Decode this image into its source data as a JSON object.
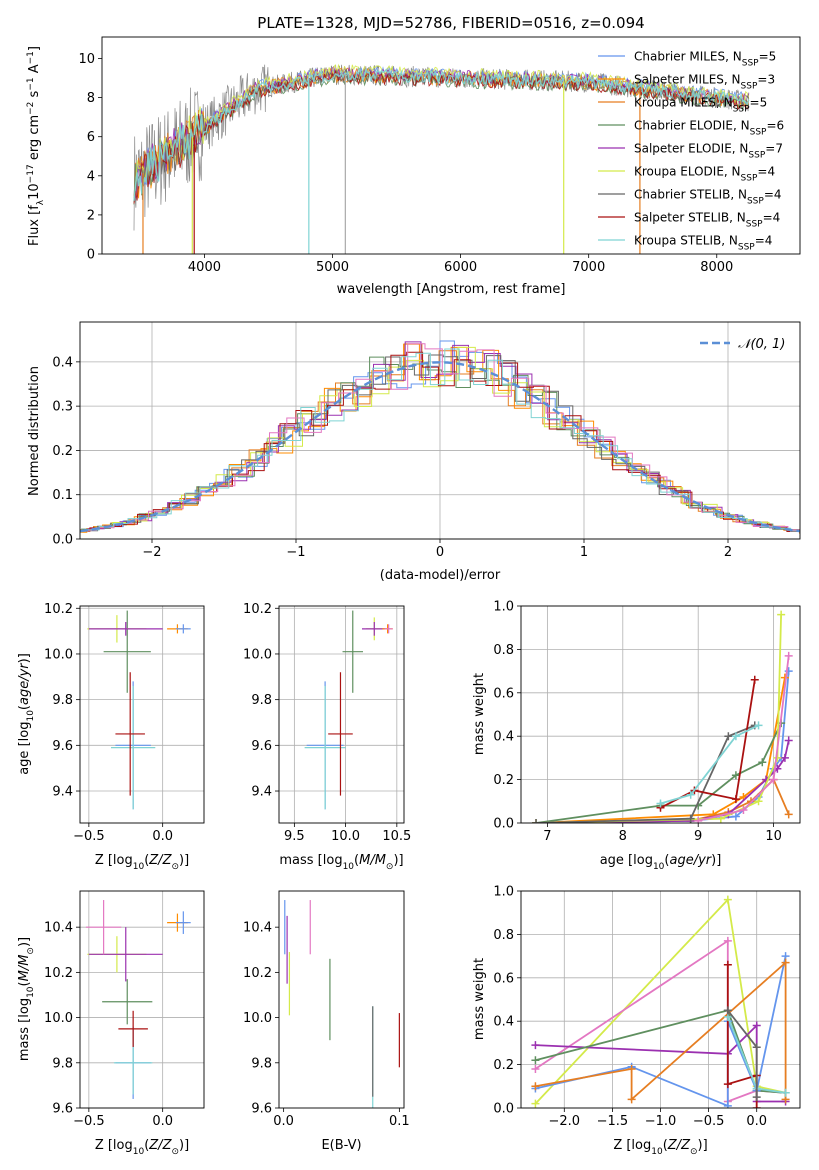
{
  "chart_data": [
    {
      "type": "line",
      "title": "PLATE=1328, MJD=52786, FIBERID=0516, z=0.094",
      "xlabel": "wavelength [Angstrom, rest frame]",
      "ylabel": "Flux [f_λ10^-17 erg cm^-2 s^-1 A^-1]",
      "xlim": [
        3200,
        8650
      ],
      "ylim": [
        0,
        11.1
      ],
      "xticks": [
        "4000",
        "5000",
        "6000",
        "7000",
        "8000"
      ],
      "yticks": [
        "0",
        "2",
        "4",
        "6",
        "8",
        "10"
      ],
      "legend_position": "right",
      "series": [
        {
          "name": "Chabrier MILES, N_SSP=5",
          "color": "#6495ed"
        },
        {
          "name": "Salpeter MILES, N_SSP=3",
          "color": "#ff8c00"
        },
        {
          "name": "Kroupa MILES, N_SSP=5",
          "color": "#e67e22"
        },
        {
          "name": "Chabrier ELODIE, N_SSP=6",
          "color": "#5f8f5f"
        },
        {
          "name": "Salpeter ELODIE, N_SSP=7",
          "color": "#9b30b0"
        },
        {
          "name": "Kroupa ELODIE, N_SSP=4",
          "color": "#d4ea4a"
        },
        {
          "name": "Chabrier STELIB, N_SSP=4",
          "color": "#666666"
        },
        {
          "name": "Salpeter STELIB, N_SSP=4",
          "color": "#aa1111"
        },
        {
          "name": "Kroupa STELIB, N_SSP=4",
          "color": "#7fd3d3"
        }
      ],
      "data_color": "#888888"
    },
    {
      "type": "bar",
      "xlabel": "(data-model)/error",
      "ylabel": "Normed distribution",
      "xlim": [
        -2.5,
        2.5
      ],
      "ylim": [
        0,
        0.49
      ],
      "xticks": [
        "−2",
        "−1",
        "0",
        "1",
        "2"
      ],
      "yticks": [
        "0.0",
        "0.1",
        "0.2",
        "0.3",
        "0.4"
      ],
      "grid": true,
      "legend": "𝒩(0, 1)",
      "legend_position": "top-right",
      "gaussian": {
        "mean": 0,
        "sigma": 1,
        "color": "#5b8fd6"
      }
    },
    {
      "type": "scatter",
      "xlabel": "Z [log10(Z/Z⊙)]",
      "ylabel": "age  [log10(age/yr)]",
      "xlim": [
        -0.56,
        0.28
      ],
      "ylim": [
        9.26,
        10.21
      ],
      "xticks": [
        "−0.5",
        "0.0"
      ],
      "yticks": [
        "9.4",
        "9.6",
        "9.8",
        "10.0",
        "10.2"
      ],
      "grid": true,
      "points": [
        {
          "x": -0.2,
          "y": 9.6,
          "xerr": 0.12,
          "yerr": 0.28,
          "color": "#6495ed"
        },
        {
          "x": -0.2,
          "y": 9.59,
          "xerr": 0.15,
          "yerr": 0.27,
          "color": "#7fd3d3"
        },
        {
          "x": -0.22,
          "y": 9.65,
          "xerr": 0.1,
          "yerr": 0.27,
          "color": "#aa1111"
        },
        {
          "x": -0.24,
          "y": 10.01,
          "xerr": 0.16,
          "yerr": 0.18,
          "color": "#5f8f5f"
        },
        {
          "x": -0.31,
          "y": 10.11,
          "xerr": 0.2,
          "yerr": 0.06,
          "color": "#d4ea4a"
        },
        {
          "x": -0.25,
          "y": 10.11,
          "xerr": 0.25,
          "yerr": 0.03,
          "color": "#9b30b0"
        },
        {
          "x": 0.1,
          "y": 10.11,
          "xerr": 0.07,
          "yerr": 0.02,
          "color": "#ff8c00"
        },
        {
          "x": 0.14,
          "y": 10.11,
          "xerr": 0.05,
          "yerr": 0.02,
          "color": "#6495ed"
        }
      ]
    },
    {
      "type": "scatter",
      "xlabel": "mass [log10(M/M⊙)]",
      "xlim": [
        9.35,
        10.57
      ],
      "ylim": [
        9.26,
        10.21
      ],
      "xticks": [
        "9.0",
        "9.5",
        "10.0",
        "10.5"
      ],
      "yticks": [
        "9.4",
        "9.6",
        "9.8",
        "10.0",
        "10.2"
      ],
      "grid": true,
      "points": [
        {
          "x": 9.8,
          "y": 9.6,
          "xerr": 0.18,
          "yerr": 0.28,
          "color": "#6495ed"
        },
        {
          "x": 9.8,
          "y": 9.59,
          "xerr": 0.2,
          "yerr": 0.27,
          "color": "#7fd3d3"
        },
        {
          "x": 9.95,
          "y": 9.65,
          "xerr": 0.12,
          "yerr": 0.27,
          "color": "#aa1111"
        },
        {
          "x": 10.07,
          "y": 10.01,
          "xerr": 0.1,
          "yerr": 0.18,
          "color": "#5f8f5f"
        },
        {
          "x": 10.28,
          "y": 10.11,
          "xerr": 0.08,
          "yerr": 0.05,
          "color": "#d4ea4a"
        },
        {
          "x": 10.28,
          "y": 10.11,
          "xerr": 0.12,
          "yerr": 0.03,
          "color": "#9b30b0"
        },
        {
          "x": 10.41,
          "y": 10.11,
          "xerr": 0.05,
          "yerr": 0.02,
          "color": "#ff8c00"
        },
        {
          "x": 10.42,
          "y": 10.11,
          "xerr": 0.04,
          "yerr": 0.02,
          "color": "#e377c2"
        }
      ]
    },
    {
      "type": "line",
      "xlabel": "age  [log10(age/yr)]",
      "ylabel": "mass weight",
      "xlim": [
        6.65,
        10.35
      ],
      "ylim": [
        0,
        1.0
      ],
      "xticks": [
        "7",
        "8",
        "9",
        "10"
      ],
      "yticks": [
        "0.0",
        "0.2",
        "0.4",
        "0.6",
        "0.8",
        "1.0"
      ],
      "grid": true,
      "series": [
        {
          "color": "#6495ed",
          "x": [
            6.85,
            8.9,
            9.5,
            9.8,
            10.0,
            10.1,
            10.2
          ],
          "y": [
            0.0,
            0.01,
            0.03,
            0.12,
            0.25,
            0.3,
            0.7
          ]
        },
        {
          "color": "#ff8c00",
          "x": [
            6.85,
            9.2,
            9.6,
            9.9,
            10.15
          ],
          "y": [
            0.0,
            0.04,
            0.12,
            0.2,
            0.67
          ]
        },
        {
          "color": "#e67e22",
          "x": [
            8.9,
            9.4,
            9.7,
            10.0,
            10.2
          ],
          "y": [
            0.01,
            0.05,
            0.1,
            0.2,
            0.04
          ]
        },
        {
          "color": "#5f8f5f",
          "x": [
            6.85,
            8.5,
            9.0,
            9.5,
            9.85,
            10.1
          ],
          "y": [
            0.0,
            0.08,
            0.08,
            0.22,
            0.28,
            0.46
          ]
        },
        {
          "color": "#9b30b0",
          "x": [
            6.85,
            8.9,
            9.4,
            9.9,
            10.05,
            10.15,
            10.2
          ],
          "y": [
            0.0,
            0.01,
            0.04,
            0.2,
            0.25,
            0.3,
            0.38
          ]
        },
        {
          "color": "#d4ea4a",
          "x": [
            6.85,
            9.3,
            9.8,
            10.05,
            10.1
          ],
          "y": [
            0.0,
            0.02,
            0.1,
            0.3,
            0.96
          ]
        },
        {
          "color": "#666666",
          "x": [
            6.85,
            8.9,
            9.4,
            9.75
          ],
          "y": [
            0.0,
            0.02,
            0.4,
            0.45
          ]
        },
        {
          "color": "#aa1111",
          "x": [
            8.5,
            8.95,
            9.5,
            9.75
          ],
          "y": [
            0.07,
            0.15,
            0.11,
            0.66
          ]
        },
        {
          "color": "#e377c2",
          "x": [
            9.0,
            9.6,
            10.0,
            10.2
          ],
          "y": [
            0.01,
            0.06,
            0.2,
            0.77
          ]
        },
        {
          "color": "#7fd3d3",
          "x": [
            8.5,
            8.9,
            9.5,
            9.8
          ],
          "y": [
            0.09,
            0.13,
            0.4,
            0.45
          ]
        }
      ]
    },
    {
      "type": "scatter",
      "xlabel": "Z [log10(Z/Z⊙)]",
      "ylabel": "mass [log10(M/M⊙)]",
      "xlim": [
        -0.56,
        0.28
      ],
      "ylim": [
        9.6,
        10.56
      ],
      "xticks": [
        "−0.5",
        "0.0"
      ],
      "yticks": [
        "9.6",
        "9.8",
        "10.0",
        "10.2",
        "10.4"
      ],
      "grid": true,
      "points": [
        {
          "x": -0.2,
          "y": 9.8,
          "xerr": 0.12,
          "yerr": 0.16,
          "color": "#6495ed"
        },
        {
          "x": -0.2,
          "y": 9.8,
          "xerr": 0.13,
          "yerr": 0.14,
          "color": "#7fd3d3"
        },
        {
          "x": -0.2,
          "y": 9.95,
          "xerr": 0.1,
          "yerr": 0.08,
          "color": "#aa1111"
        },
        {
          "x": -0.24,
          "y": 10.07,
          "xerr": 0.17,
          "yerr": 0.1,
          "color": "#5f8f5f"
        },
        {
          "x": -0.31,
          "y": 10.28,
          "xerr": 0.2,
          "yerr": 0.08,
          "color": "#d4ea4a"
        },
        {
          "x": -0.25,
          "y": 10.28,
          "xerr": 0.25,
          "yerr": 0.12,
          "color": "#9b30b0"
        },
        {
          "x": 0.1,
          "y": 10.42,
          "xerr": 0.07,
          "yerr": 0.04,
          "color": "#ff8c00"
        },
        {
          "x": 0.14,
          "y": 10.42,
          "xerr": 0.05,
          "yerr": 0.05,
          "color": "#6495ed"
        },
        {
          "x": -0.4,
          "y": 10.4,
          "xerr": 0.12,
          "yerr": 0.12,
          "color": "#e377c2"
        }
      ]
    },
    {
      "type": "scatter",
      "xlabel": "E(B-V)",
      "xlim": [
        -0.004,
        0.104
      ],
      "ylim": [
        9.6,
        10.56
      ],
      "xticks": [
        "0.0",
        "0.1"
      ],
      "yticks": [
        "9.6",
        "9.8",
        "10.0",
        "10.2",
        "10.4"
      ],
      "grid": false,
      "points": [
        {
          "x": 0.001,
          "y": 10.4,
          "yerr": 0.12,
          "color": "#6495ed"
        },
        {
          "x": 0.003,
          "y": 10.3,
          "yerr": 0.15,
          "color": "#9b30b0"
        },
        {
          "x": 0.005,
          "y": 10.15,
          "yerr": 0.14,
          "color": "#d4ea4a"
        },
        {
          "x": 0.023,
          "y": 10.4,
          "yerr": 0.12,
          "color": "#e377c2"
        },
        {
          "x": 0.04,
          "y": 10.08,
          "yerr": 0.18,
          "color": "#5f8f5f"
        },
        {
          "x": 0.077,
          "y": 9.8,
          "yerr": 0.25,
          "color": "#7fd3d3"
        },
        {
          "x": 0.077,
          "y": 9.85,
          "yerr": 0.2,
          "color": "#666666"
        },
        {
          "x": 0.1,
          "y": 9.9,
          "yerr": 0.12,
          "color": "#aa1111"
        }
      ]
    },
    {
      "type": "line",
      "xlabel": "Z [log10(Z/Z⊙)]",
      "ylabel": "mass weight",
      "xlim": [
        -2.45,
        0.45
      ],
      "ylim": [
        0,
        1.0
      ],
      "xticks": [
        "−2.0",
        "−1.5",
        "−1.0",
        "−0.5",
        "0.0"
      ],
      "yticks": [
        "0.0",
        "0.2",
        "0.4",
        "0.6",
        "0.8",
        "1.0"
      ],
      "grid": true,
      "series": [
        {
          "color": "#d4ea4a",
          "x": [
            -2.3,
            -0.3,
            0.0,
            0.3
          ],
          "y": [
            0.02,
            0.96,
            0.1,
            0.07
          ]
        },
        {
          "color": "#e377c2",
          "x": [
            -2.3,
            -0.3,
            -0.3,
            0.0,
            0.3
          ],
          "y": [
            0.18,
            0.77,
            0.03,
            0.08,
            0.07
          ]
        },
        {
          "color": "#9b30b0",
          "x": [
            -2.3,
            -0.3,
            0.0,
            0.0,
            0.3
          ],
          "y": [
            0.29,
            0.25,
            0.38,
            0.03,
            0.03
          ]
        },
        {
          "color": "#5f8f5f",
          "x": [
            -2.3,
            -0.3,
            0.0,
            0.3
          ],
          "y": [
            0.22,
            0.45,
            0.08,
            0.07
          ]
        },
        {
          "color": "#6495ed",
          "x": [
            -2.3,
            -1.3,
            -0.3,
            -0.3,
            0.0,
            0.3
          ],
          "y": [
            0.09,
            0.19,
            0.01,
            0.4,
            0.08,
            0.7
          ]
        },
        {
          "color": "#e67e22",
          "x": [
            -2.3,
            -1.3,
            -1.3,
            0.3,
            0.3
          ],
          "y": [
            0.1,
            0.18,
            0.04,
            0.67,
            0.04
          ]
        },
        {
          "color": "#aa1111",
          "x": [
            -0.3,
            -0.3,
            0.0,
            0.0
          ],
          "y": [
            0.66,
            0.11,
            0.15,
            0.0
          ]
        },
        {
          "color": "#7fd3d3",
          "x": [
            -0.3,
            0.0,
            0.3
          ],
          "y": [
            0.42,
            0.09,
            0.07
          ]
        },
        {
          "color": "#666666",
          "x": [
            -0.3,
            0.0,
            0.0
          ],
          "y": [
            0.45,
            0.28,
            0.05
          ]
        }
      ]
    }
  ]
}
